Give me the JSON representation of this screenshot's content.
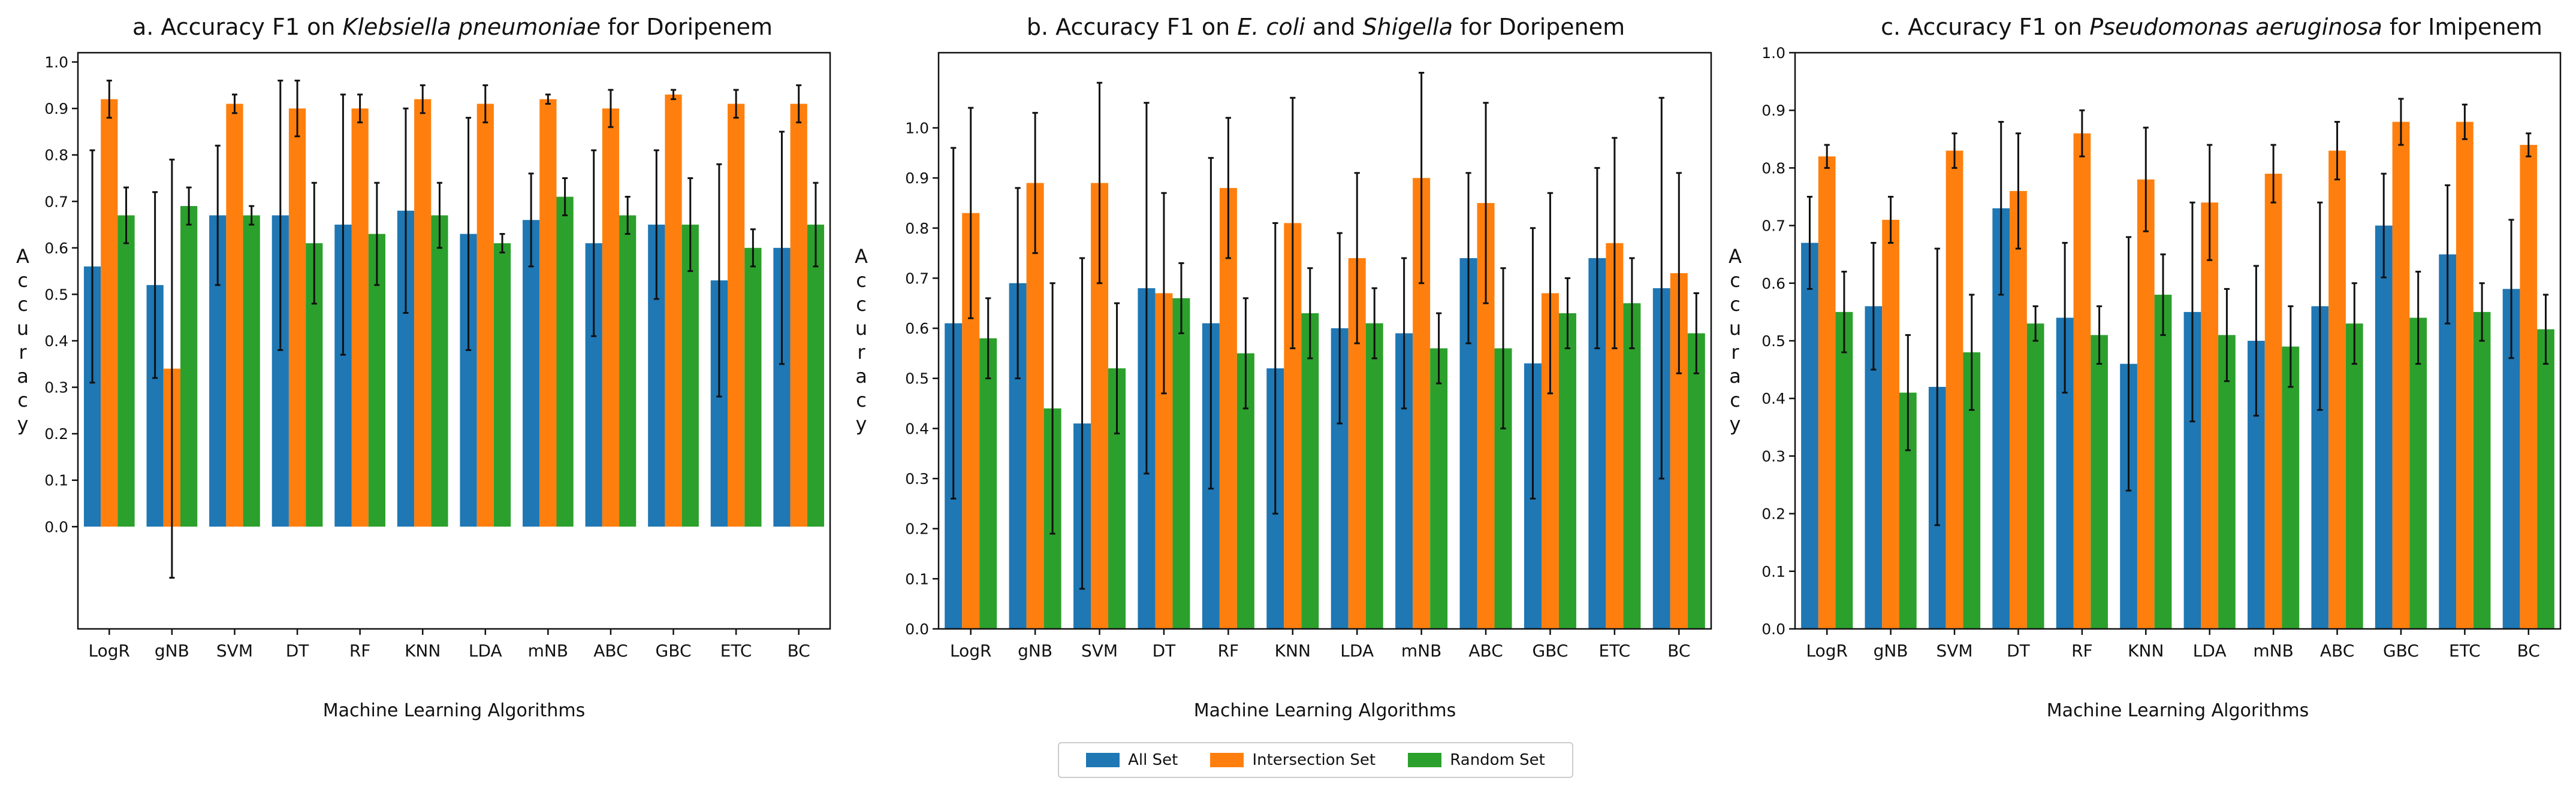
{
  "colors": {
    "all": "#1f77b4",
    "intersection": "#ff7f0e",
    "random": "#2ca02c"
  },
  "legend": {
    "all": "All Set",
    "intersection": "Intersection Set",
    "random": "Random Set"
  },
  "chart_data": [
    {
      "type": "bar",
      "title_parts": [
        "a. Accuracy F1 on ",
        "Klebsiella pneumoniae",
        " for Doripenem"
      ],
      "xlabel": "Machine Learning Algorithms",
      "ylabel": "Accuracy",
      "ylim": [
        -0.22,
        1.02
      ],
      "yticks": [
        0.0,
        0.1,
        0.2,
        0.3,
        0.4,
        0.5,
        0.6,
        0.7,
        0.8,
        0.9,
        1.0
      ],
      "yticks_labels": [
        "0.0",
        "0.1",
        "0.2",
        "0.3",
        "0.4",
        "0.5",
        "0.6",
        "0.7",
        "0.8",
        "0.9",
        "1.0"
      ],
      "categories": [
        "LogR",
        "gNB",
        "SVM",
        "DT",
        "RF",
        "KNN",
        "LDA",
        "mNB",
        "ABC",
        "GBC",
        "ETC",
        "BC"
      ],
      "series": [
        {
          "name": "All Set",
          "values": [
            0.56,
            0.52,
            0.67,
            0.67,
            0.65,
            0.68,
            0.63,
            0.66,
            0.61,
            0.65,
            0.53,
            0.6
          ],
          "errors": [
            0.25,
            0.2,
            0.15,
            0.29,
            0.28,
            0.22,
            0.25,
            0.1,
            0.2,
            0.16,
            0.25,
            0.25
          ]
        },
        {
          "name": "Intersection Set",
          "values": [
            0.92,
            0.34,
            0.91,
            0.9,
            0.9,
            0.92,
            0.91,
            0.92,
            0.9,
            0.93,
            0.91,
            0.91
          ],
          "errors": [
            0.04,
            0.45,
            0.02,
            0.06,
            0.03,
            0.03,
            0.04,
            0.01,
            0.04,
            0.01,
            0.03,
            0.04
          ]
        },
        {
          "name": "Random Set",
          "values": [
            0.67,
            0.69,
            0.67,
            0.61,
            0.63,
            0.67,
            0.61,
            0.71,
            0.67,
            0.65,
            0.6,
            0.65
          ],
          "errors": [
            0.06,
            0.04,
            0.02,
            0.13,
            0.11,
            0.07,
            0.02,
            0.04,
            0.04,
            0.1,
            0.04,
            0.09
          ]
        }
      ]
    },
    {
      "type": "bar",
      "title_parts": [
        "b. Accuracy F1 on ",
        "E. coli",
        " and ",
        "Shigella",
        " for Doripenem"
      ],
      "xlabel": "Machine Learning Algorithms",
      "ylabel": "Accuracy",
      "ylim": [
        0.0,
        1.15
      ],
      "yticks": [
        0.0,
        0.1,
        0.2,
        0.3,
        0.4,
        0.5,
        0.6,
        0.7,
        0.8,
        0.9,
        1.0
      ],
      "yticks_labels": [
        "0.0",
        "0.1",
        "0.2",
        "0.3",
        "0.4",
        "0.5",
        "0.6",
        "0.7",
        "0.8",
        "0.9",
        "1.0"
      ],
      "categories": [
        "LogR",
        "gNB",
        "SVM",
        "DT",
        "RF",
        "KNN",
        "LDA",
        "mNB",
        "ABC",
        "GBC",
        "ETC",
        "BC"
      ],
      "series": [
        {
          "name": "All Set",
          "values": [
            0.61,
            0.69,
            0.41,
            0.68,
            0.61,
            0.52,
            0.6,
            0.59,
            0.74,
            0.53,
            0.74,
            0.68
          ],
          "errors": [
            0.35,
            0.19,
            0.33,
            0.37,
            0.33,
            0.29,
            0.19,
            0.15,
            0.17,
            0.27,
            0.18,
            0.38
          ]
        },
        {
          "name": "Intersection Set",
          "values": [
            0.83,
            0.89,
            0.89,
            0.67,
            0.88,
            0.81,
            0.74,
            0.9,
            0.85,
            0.67,
            0.77,
            0.71
          ],
          "errors": [
            0.21,
            0.14,
            0.2,
            0.2,
            0.14,
            0.25,
            0.17,
            0.21,
            0.2,
            0.2,
            0.21,
            0.2
          ]
        },
        {
          "name": "Random Set",
          "values": [
            0.58,
            0.44,
            0.52,
            0.66,
            0.55,
            0.63,
            0.61,
            0.56,
            0.56,
            0.63,
            0.65,
            0.59
          ],
          "errors": [
            0.08,
            0.25,
            0.13,
            0.07,
            0.11,
            0.09,
            0.07,
            0.07,
            0.16,
            0.07,
            0.09,
            0.08
          ]
        }
      ]
    },
    {
      "type": "bar",
      "title_parts": [
        "c. Accuracy F1 on ",
        "Pseudomonas aeruginosa",
        " for Imipenem"
      ],
      "xlabel": "Machine Learning Algorithms",
      "ylabel": "Accuracy",
      "ylim": [
        0.0,
        1.0
      ],
      "yticks": [
        0.0,
        0.1,
        0.2,
        0.3,
        0.4,
        0.5,
        0.6,
        0.7,
        0.8,
        0.9,
        1.0
      ],
      "yticks_labels": [
        "0.0",
        "0.1",
        "0.2",
        "0.3",
        "0.4",
        "0.5",
        "0.6",
        "0.7",
        "0.8",
        "0.9",
        "1.0"
      ],
      "categories": [
        "LogR",
        "gNB",
        "SVM",
        "DT",
        "RF",
        "KNN",
        "LDA",
        "mNB",
        "ABC",
        "GBC",
        "ETC",
        "BC"
      ],
      "series": [
        {
          "name": "All Set",
          "values": [
            0.67,
            0.56,
            0.42,
            0.73,
            0.54,
            0.46,
            0.55,
            0.5,
            0.56,
            0.7,
            0.65,
            0.59
          ],
          "errors": [
            0.08,
            0.11,
            0.24,
            0.15,
            0.13,
            0.22,
            0.19,
            0.13,
            0.18,
            0.09,
            0.12,
            0.12
          ]
        },
        {
          "name": "Intersection Set",
          "values": [
            0.82,
            0.71,
            0.83,
            0.76,
            0.86,
            0.78,
            0.74,
            0.79,
            0.83,
            0.88,
            0.88,
            0.84
          ],
          "errors": [
            0.02,
            0.04,
            0.03,
            0.1,
            0.04,
            0.09,
            0.1,
            0.05,
            0.05,
            0.04,
            0.03,
            0.02
          ]
        },
        {
          "name": "Random Set",
          "values": [
            0.55,
            0.41,
            0.48,
            0.53,
            0.51,
            0.58,
            0.51,
            0.49,
            0.53,
            0.54,
            0.55,
            0.52
          ],
          "errors": [
            0.07,
            0.1,
            0.1,
            0.03,
            0.05,
            0.07,
            0.08,
            0.07,
            0.07,
            0.08,
            0.05,
            0.06
          ]
        }
      ]
    }
  ]
}
